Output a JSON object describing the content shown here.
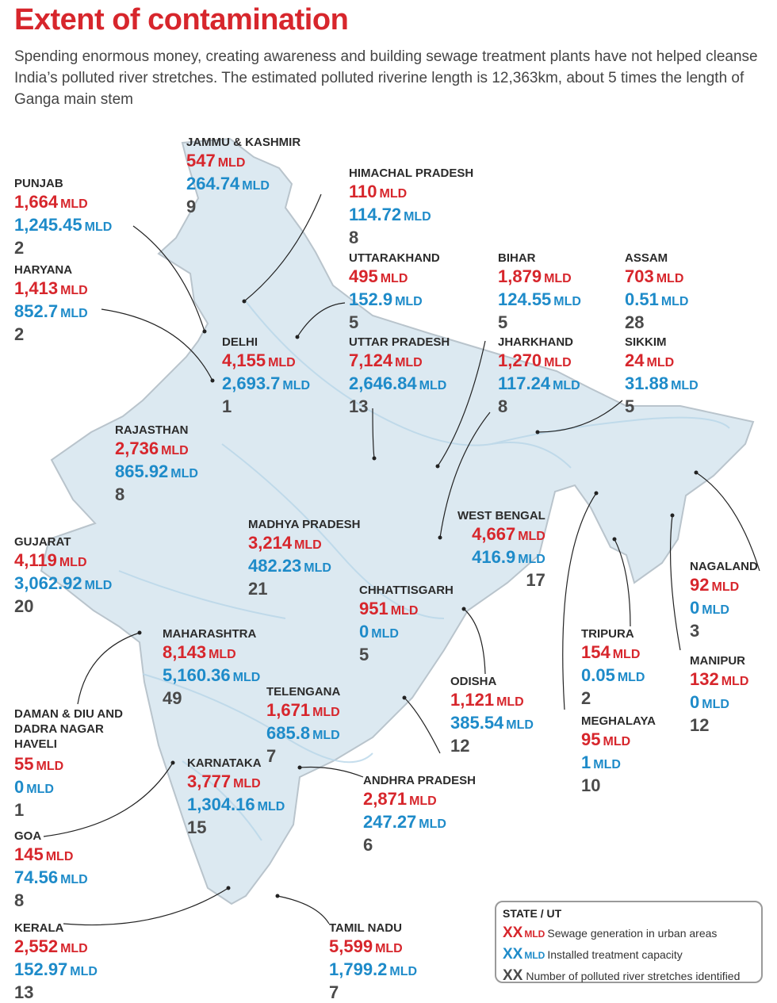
{
  "header": {
    "title": "Extent of contamination",
    "subtitle": "Spending enormous money, creating awareness and building sewage treatment plants have not helped cleanse India’s polluted river stretches. The estimated polluted riverine length is 12,363km, about 5 times the length of Ganga main stem"
  },
  "unit": "MLD",
  "colors": {
    "generation": "#d7262c",
    "capacity": "#1e8bc9",
    "stretches": "#4a4a4a",
    "map_fill": "#dce9f1",
    "border": "#b9c4cc"
  },
  "states": {
    "jk": {
      "name": "JAMMU & KASHMIR",
      "gen": "547",
      "cap": "264.74",
      "stretches": "9"
    },
    "pb": {
      "name": "PUNJAB",
      "gen": "1,664",
      "cap": "1,245.45",
      "stretches": "2"
    },
    "hp": {
      "name": "HIMACHAL PRADESH",
      "gen": "110",
      "cap": "114.72",
      "stretches": "8"
    },
    "hr": {
      "name": "HARYANA",
      "gen": "1,413",
      "cap": "852.7",
      "stretches": "2"
    },
    "uk": {
      "name": "UTTARAKHAND",
      "gen": "495",
      "cap": "152.9",
      "stretches": "5"
    },
    "br": {
      "name": "BIHAR",
      "gen": "1,879",
      "cap": "124.55",
      "stretches": "5"
    },
    "as": {
      "name": "ASSAM",
      "gen": "703",
      "cap": "0.51",
      "stretches": "28"
    },
    "dl": {
      "name": "DELHI",
      "gen": "4,155",
      "cap": "2,693.7",
      "stretches": "1"
    },
    "up": {
      "name": "UTTAR PRADESH",
      "gen": "7,124",
      "cap": "2,646.84",
      "stretches": "13"
    },
    "jh": {
      "name": "JHARKHAND",
      "gen": "1,270",
      "cap": "117.24",
      "stretches": "8"
    },
    "sk": {
      "name": "SIKKIM",
      "gen": "24",
      "cap": "31.88",
      "stretches": "5"
    },
    "rj": {
      "name": "RAJASTHAN",
      "gen": "2,736",
      "cap": "865.92",
      "stretches": "8"
    },
    "wb": {
      "name": "WEST BENGAL",
      "gen": "4,667",
      "cap": "416.9",
      "stretches": "17"
    },
    "mp": {
      "name": "MADHYA PRADESH",
      "gen": "3,214",
      "cap": "482.23",
      "stretches": "21"
    },
    "gj": {
      "name": "GUJARAT",
      "gen": "4,119",
      "cap": "3,062.92",
      "stretches": "20"
    },
    "nl": {
      "name": "NAGALAND",
      "gen": "92",
      "cap": "0",
      "stretches": "3"
    },
    "cg": {
      "name": "CHHATTISGARH",
      "gen": "951",
      "cap": "0",
      "stretches": "5"
    },
    "mh": {
      "name": "MAHARASHTRA",
      "gen": "8,143",
      "cap": "5,160.36",
      "stretches": "49"
    },
    "tr": {
      "name": "TRIPURA",
      "gen": "154",
      "cap": "0.05",
      "stretches": "2"
    },
    "mn": {
      "name": "MANIPUR",
      "gen": "132",
      "cap": "0",
      "stretches": "12"
    },
    "tg": {
      "name": "TELENGANA",
      "gen": "1,671",
      "cap": "685.8",
      "stretches": "7"
    },
    "od": {
      "name": "ODISHA",
      "gen": "1,121",
      "cap": "385.54",
      "stretches": "12"
    },
    "dd": {
      "name": "DAMAN & DIU AND DADRA NAGAR HAVELI",
      "gen": "55",
      "cap": "0",
      "stretches": "1"
    },
    "ml": {
      "name": "MEGHALAYA",
      "gen": "95",
      "cap": "1",
      "stretches": "10"
    },
    "ka": {
      "name": "KARNATAKA",
      "gen": "3,777",
      "cap": "1,304.16",
      "stretches": "15"
    },
    "ap": {
      "name": "ANDHRA PRADESH",
      "gen": "2,871",
      "cap": "247.27",
      "stretches": "6"
    },
    "ga": {
      "name": "GOA",
      "gen": "145",
      "cap": "74.56",
      "stretches": "8"
    },
    "kl": {
      "name": "KERALA",
      "gen": "2,552",
      "cap": "152.97",
      "stretches": "13"
    },
    "tn": {
      "name": "TAMIL NADU",
      "gen": "5,599",
      "cap": "1,799.2",
      "stretches": "7"
    }
  },
  "legend": {
    "title": "STATE / UT",
    "placeholder": "XX",
    "generation_label": "Sewage generation in urban areas",
    "capacity_label": "Installed treatment capacity",
    "stretches_label": "Number of polluted river stretches identified"
  }
}
